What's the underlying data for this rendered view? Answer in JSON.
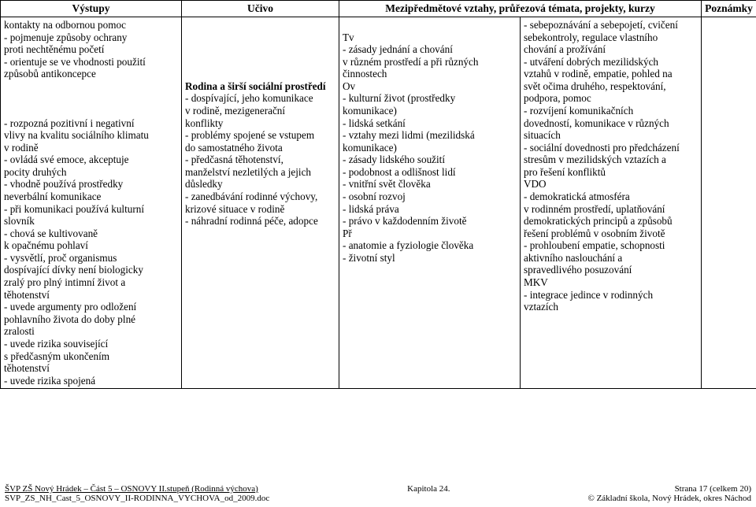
{
  "table": {
    "headers": [
      "Výstupy",
      "Učivo",
      "Mezipředmětové vztahy, průřezová témata, projekty, kurzy",
      "Poznámky"
    ],
    "col1": {
      "lines": [
        "kontakty na odbornou pomoc",
        "- pojmenuje způsoby ochrany",
        "proti nechtěnému početí",
        "- orientuje se ve vhodnosti použití",
        "způsobů antikoncepce",
        "",
        "",
        "",
        "- rozpozná pozitivní i negativní",
        "vlivy na kvalitu sociálního klimatu",
        "v rodině",
        "- ovládá své emoce, akceptuje",
        "pocity druhých",
        "- vhodně používá prostředky",
        "neverbální komunikace",
        "- při komunikaci používá kulturní",
        "slovník",
        "- chová se kultivovaně",
        "k opačnému pohlaví",
        "- vysvětlí, proč organismus",
        "dospívající dívky není biologicky",
        "zralý pro plný intimní život a",
        "těhotenství",
        "- uvede argumenty pro odložení",
        "pohlavního života do doby plné",
        "zralosti",
        "- uvede rizika související",
        "s předčasným ukončením",
        "těhotenství",
        "- uvede rizika spojená"
      ]
    },
    "col2": {
      "blankLines": 5,
      "heading": "Rodina a širší sociální prostředí",
      "lines": [
        "- dospívající, jeho komunikace",
        "v rodině, mezigenerační",
        "konflikty",
        "- problémy spojené se vstupem",
        "do samostatného života",
        "- předčasná těhotenství,",
        "manželství nezletilých a jejich",
        "důsledky",
        "- zanedbávání rodinné výchovy,",
        "krizové situace v rodině",
        "- náhradní rodinná péče, adopce"
      ]
    },
    "col3": {
      "blankLines": 1,
      "lines": [
        "Tv",
        "- zásady jednání a chování",
        "v různém prostředí a při různých",
        "činnostech",
        "Ov",
        "- kulturní život (prostředky",
        "komunikace)",
        "- lidská setkání",
        "- vztahy mezi lidmi (mezilidská",
        "komunikace)",
        "- zásady lidského soužití",
        "- podobnost a odlišnost lidí",
        "- vnitřní svět člověka",
        "- osobní rozvoj",
        "- lidská práva",
        "- právo v každodenním životě",
        "Př",
        "- anatomie a fyziologie člověka",
        "- životní styl"
      ]
    },
    "col4": {
      "lines": [
        "- sebepoznávání a sebepojetí, cvičení",
        "sebekontroly, regulace vlastního",
        "chování a prožívání",
        "- utváření dobrých mezilidských",
        "vztahů v rodině, empatie, pohled na",
        "svět očima druhého, respektování,",
        "podpora, pomoc",
        "- rozvíjení komunikačních",
        "dovedností, komunikace v různých",
        "situacích",
        "- sociální dovednosti pro předcházení",
        "stresům v mezilidských vztazích a",
        "pro řešení konfliktů",
        "VDO",
        "- demokratická atmosféra",
        "v rodinném prostředí, uplatňování",
        "demokratických principů a způsobů",
        "řešení problémů v osobním životě",
        "- prohloubení empatie, schopnosti",
        "aktivního naslouchání a",
        "spravedlivého posuzování",
        "MKV",
        "- integrace jedince v rodinných",
        "vztazích"
      ]
    }
  },
  "footer": {
    "left1": "ŠVP ZŠ Nový Hrádek – Část 5 – OSNOVY II.stupeň (Rodinná výchova)",
    "left2": "SVP_ZS_NH_Cast_5_OSNOVY_II-RODINNA_VYCHOVA_od_2009.doc",
    "center": "Kapitola 24.",
    "right1": "Strana 17 (celkem 20)",
    "right2": "© Základní škola, Nový Hrádek, okres Náchod"
  }
}
